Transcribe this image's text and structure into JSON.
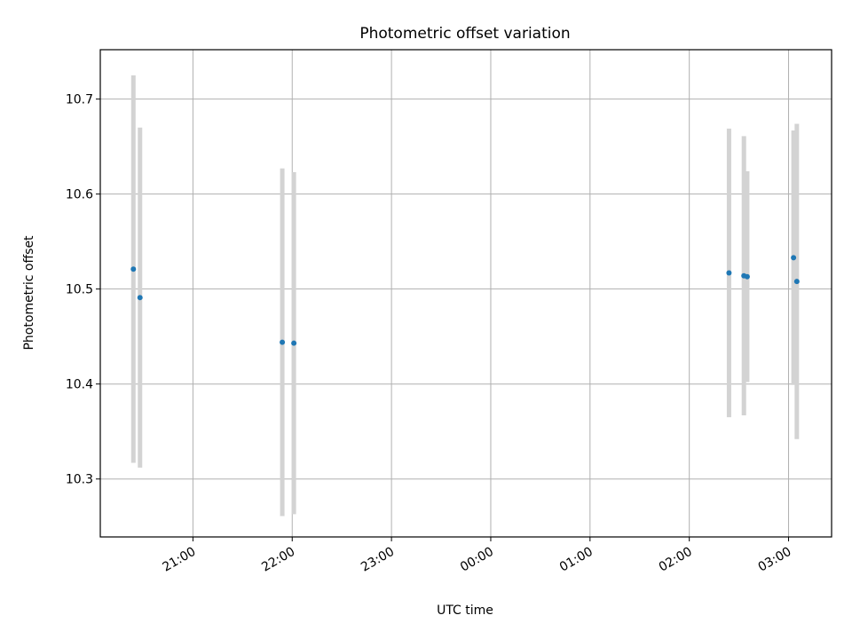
{
  "chart_data": {
    "type": "scatter",
    "title": "Photometric offset variation",
    "xlabel": "UTC time",
    "ylabel": "Photometric offset",
    "x_axis": {
      "kind": "time",
      "range": [
        "20:04",
        "03:26"
      ],
      "ticks": [
        "21:00",
        "22:00",
        "23:00",
        "00:00",
        "01:00",
        "02:00",
        "03:00"
      ],
      "tick_label_rotation": 30
    },
    "y_axis": {
      "range": [
        10.239,
        10.752
      ],
      "ticks": [
        "10.3",
        "10.4",
        "10.5",
        "10.6",
        "10.7"
      ]
    },
    "grid": true,
    "legend": false,
    "colors": {
      "point": "#1f77b4",
      "error_bar": "#d3d3d3",
      "grid": "#b0b0b0"
    },
    "series": [
      {
        "points": [
          {
            "x": "20:24",
            "y": 10.521,
            "err": 0.204
          },
          {
            "x": "20:28",
            "y": 10.491,
            "err": 0.179
          },
          {
            "x": "21:54",
            "y": 10.444,
            "err": 0.183
          },
          {
            "x": "22:01",
            "y": 10.443,
            "err": 0.18
          },
          {
            "x": "02:24",
            "y": 10.517,
            "err": 0.152
          },
          {
            "x": "02:33",
            "y": 10.514,
            "err": 0.147
          },
          {
            "x": "02:35",
            "y": 10.513,
            "err": 0.111
          },
          {
            "x": "03:03",
            "y": 10.533,
            "err": 0.134
          },
          {
            "x": "03:05",
            "y": 10.508,
            "err": 0.166
          }
        ]
      }
    ]
  }
}
